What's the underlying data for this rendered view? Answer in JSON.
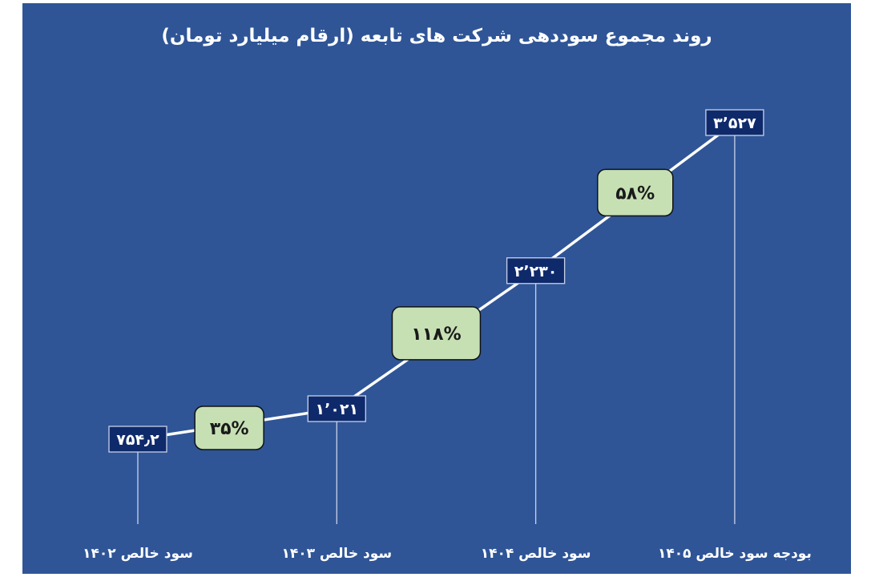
{
  "chart_data": {
    "type": "line",
    "title": "روند مجموع سوددهی شرکت های تابعه (ارقام میلیارد تومان)",
    "categories": [
      "سود خالص ۱۴۰۲",
      "سود خالص ۱۴۰۳",
      "سود خالص ۱۴۰۴",
      "بودجه سود خالص ۱۴۰۵"
    ],
    "values": [
      754.2,
      1021,
      2230,
      3527
    ],
    "data_labels": [
      "۷۵۴٫۲",
      "۱٬۰۲۱",
      "۲٬۲۳۰",
      "۳٬۵۲۷"
    ],
    "growth_labels": [
      "۳۵%",
      "۱۱۸%",
      "۵۸%"
    ],
    "xlabel": "",
    "ylabel": "",
    "grid": false,
    "legend": "none",
    "colors": {
      "background": "#2F5597",
      "line": "#FFFFFF",
      "value_box": "#0F2A6B",
      "growth_box": "#C6E0B4",
      "text": "#FFFFFF"
    }
  }
}
